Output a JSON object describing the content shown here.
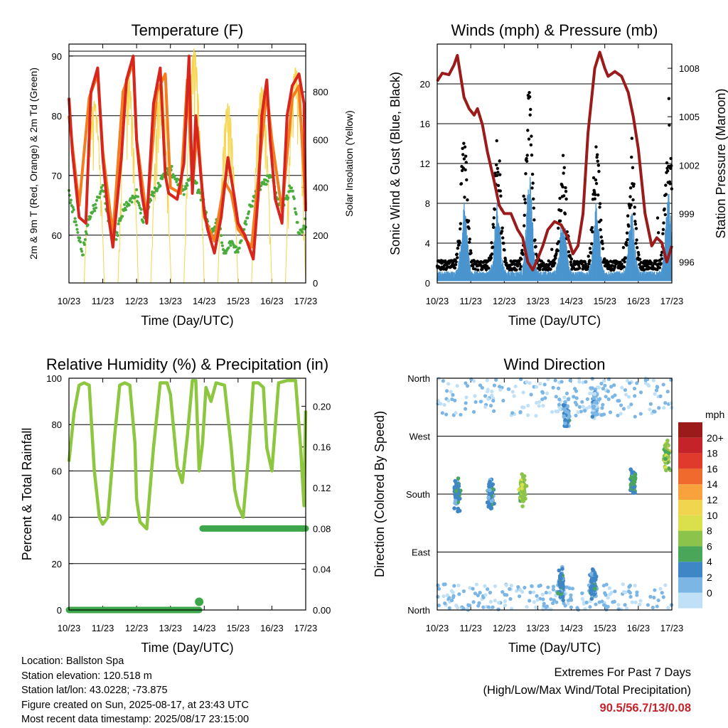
{
  "chart_data": [
    {
      "type": "line",
      "title": "Temperature (F)",
      "xlabel": "Time (Day/UTC)",
      "ylabel": "2m & 9m T (Red, Orange) & 2m Td (Green)",
      "y2label": "Solar Insolation (Yellow)",
      "x_ticks": [
        "10/23",
        "11/23",
        "12/23",
        "13/23",
        "14/23",
        "15/23",
        "16/23",
        "17/23"
      ],
      "xlim": [
        10,
        17
      ],
      "ylim": [
        52,
        92
      ],
      "y_ticks": [
        60,
        70,
        80,
        90
      ],
      "y2lim": [
        0,
        1000
      ],
      "y2_ticks": [
        0,
        200,
        400,
        600,
        800
      ],
      "grid": true,
      "colors": {
        "t2m": "#d7261e",
        "t9m": "#f47d20",
        "td2m": "#4aac3c",
        "solar": "#f7d44a"
      },
      "series": [
        {
          "name": "2m T",
          "x": [
            10.0,
            10.1,
            10.3,
            10.5,
            10.65,
            10.85,
            11.0,
            11.15,
            11.3,
            11.55,
            11.7,
            11.9,
            12.0,
            12.15,
            12.3,
            12.5,
            12.7,
            12.85,
            12.95,
            13.2,
            13.4,
            13.55,
            13.65,
            13.75,
            13.9,
            14.0,
            14.1,
            14.3,
            14.5,
            14.7,
            14.9,
            15.0,
            15.2,
            15.45,
            15.6,
            15.7,
            15.85,
            15.95,
            16.1,
            16.3,
            16.45,
            16.6,
            16.8,
            16.95,
            17.0
          ],
          "y": [
            83,
            74,
            63,
            62,
            84,
            88,
            73,
            64,
            58,
            73,
            86,
            90,
            76,
            67,
            62,
            82,
            88,
            70,
            67,
            66,
            72,
            90,
            67,
            80,
            70,
            64,
            61,
            57,
            63,
            73,
            66,
            62,
            60,
            56,
            67,
            80,
            86,
            76,
            66,
            62,
            80,
            85,
            87,
            82,
            64
          ]
        },
        {
          "name": "9m T",
          "x": [
            10.0,
            10.3,
            10.6,
            10.85,
            11.0,
            11.3,
            11.6,
            11.9,
            12.0,
            12.3,
            12.6,
            12.85,
            13.0,
            13.3,
            13.5,
            13.65,
            13.8,
            14.0,
            14.3,
            14.6,
            14.8,
            15.0,
            15.4,
            15.6,
            15.85,
            16.0,
            16.3,
            16.6,
            16.8,
            17.0
          ],
          "y": [
            80,
            65,
            83,
            87,
            74,
            60,
            84,
            89,
            76,
            63,
            84,
            87,
            68,
            67,
            86,
            68,
            78,
            63,
            59,
            69,
            67,
            61,
            58,
            70,
            84,
            76,
            64,
            83,
            85,
            65
          ]
        },
        {
          "name": "2m Td",
          "x": [
            10.0,
            10.2,
            10.4,
            10.6,
            10.8,
            11.0,
            11.2,
            11.4,
            11.6,
            11.8,
            12.0,
            12.2,
            12.4,
            12.6,
            12.8,
            13.0,
            13.2,
            13.4,
            13.6,
            13.8,
            14.0,
            14.2,
            14.4,
            14.6,
            14.8,
            15.0,
            15.2,
            15.4,
            15.6,
            15.8,
            16.0,
            16.2,
            16.4,
            16.6,
            16.8,
            17.0
          ],
          "y": [
            67,
            62,
            57,
            63,
            65,
            68,
            62,
            60,
            64,
            66,
            67,
            62,
            66,
            68,
            70,
            71,
            69,
            67,
            70,
            68,
            65,
            60,
            63,
            57,
            59,
            57,
            62,
            65,
            68,
            69,
            70,
            65,
            66,
            68,
            60,
            62
          ]
        },
        {
          "name": "Solar Insolation",
          "peaks": [
            10.75,
            11.75,
            12.72,
            13.7,
            14.7,
            15.7,
            16.7
          ],
          "peak_values": [
            760,
            870,
            850,
            980,
            750,
            820,
            900
          ]
        }
      ]
    },
    {
      "type": "scatter",
      "title": "Winds (mph) & Pressure (mb)",
      "xlabel": "Time (Day/UTC)",
      "ylabel": "Sonic Wind & Gust (Blue, Black)",
      "y2label": "Station Pressure (Maroon)",
      "x_ticks": [
        "10/23",
        "11/23",
        "12/23",
        "13/23",
        "14/23",
        "15/23",
        "16/23",
        "17/23"
      ],
      "xlim": [
        10,
        17
      ],
      "ylim": [
        0,
        24
      ],
      "y_ticks": [
        0,
        4,
        8,
        12,
        16,
        20
      ],
      "y2lim": [
        994.7,
        1009.5
      ],
      "y2_ticks": [
        996,
        999,
        1002,
        1005,
        1008
      ],
      "grid": true,
      "colors": {
        "wind": "#4b95cf",
        "gust": "#000000",
        "pressure": "#9b1b1b"
      },
      "pressure": {
        "x": [
          10.0,
          10.15,
          10.35,
          10.5,
          10.6,
          10.7,
          10.8,
          10.95,
          11.1,
          11.2,
          11.35,
          11.5,
          11.7,
          11.85,
          12.0,
          12.2,
          12.4,
          12.55,
          12.7,
          12.85,
          13.0,
          13.15,
          13.3,
          13.5,
          13.7,
          13.9,
          14.05,
          14.2,
          14.35,
          14.5,
          14.7,
          14.85,
          15.0,
          15.1,
          15.3,
          15.5,
          15.7,
          15.85,
          16.0,
          16.2,
          16.4,
          16.55,
          16.7,
          16.85,
          17.0
        ],
        "y": [
          1007.2,
          1007.7,
          1007.6,
          1008.2,
          1008.8,
          1007.5,
          1006.2,
          1005.5,
          1005.1,
          1005.5,
          1004.5,
          1002.8,
          1001,
          999.5,
          999,
          999,
          998,
          997.5,
          996,
          995.5,
          996.2,
          997,
          998,
          998.5,
          998.3,
          997.5,
          996.5,
          997,
          999,
          1004,
          1008,
          1009,
          1008,
          1007.5,
          1007.8,
          1007.5,
          1006.5,
          1005,
          1003,
          999,
          997,
          997.5,
          997.2,
          996,
          997
        ]
      },
      "wind_bursts": [
        {
          "center": 10.8,
          "peak": 7
        },
        {
          "center": 11.8,
          "peak": 7
        },
        {
          "center": 12.75,
          "peak": 10
        },
        {
          "center": 13.75,
          "peak": 6.5
        },
        {
          "center": 14.75,
          "peak": 7
        },
        {
          "center": 15.8,
          "peak": 6
        },
        {
          "center": 16.9,
          "peak": 8
        }
      ],
      "gust_max": 22
    },
    {
      "type": "line",
      "title": "Relative Humidity (%) & Precipitation (in)",
      "xlabel": "Time (Day/UTC)",
      "ylabel": "Percent & Total Rainfall",
      "x_ticks": [
        "10/23",
        "11/23",
        "12/23",
        "13/23",
        "14/23",
        "15/23",
        "16/23",
        "17/23"
      ],
      "xlim": [
        10,
        17
      ],
      "ylim": [
        0,
        100
      ],
      "y_ticks": [
        0,
        20,
        40,
        60,
        80,
        100
      ],
      "y2lim": [
        0,
        0.2275
      ],
      "y2_ticks": [
        "0.00",
        "0.04",
        "0.08",
        "0.12",
        "0.16",
        "0.20"
      ],
      "grid": true,
      "colors": {
        "rh": "#8dc63f",
        "precip": "#3ea64a"
      },
      "series": [
        {
          "name": "Relative Humidity",
          "x": [
            10.0,
            10.15,
            10.3,
            10.45,
            10.6,
            10.75,
            10.9,
            11.0,
            11.15,
            11.35,
            11.5,
            11.65,
            11.8,
            11.95,
            12.0,
            12.1,
            12.3,
            12.5,
            12.7,
            12.9,
            13.0,
            13.2,
            13.35,
            13.5,
            13.65,
            13.75,
            13.85,
            13.95,
            14.05,
            14.2,
            14.35,
            14.6,
            14.8,
            14.9,
            15.0,
            15.15,
            15.3,
            15.45,
            15.6,
            15.75,
            15.85,
            16.0,
            16.2,
            16.45,
            16.7,
            16.85,
            16.95,
            17.0
          ],
          "y": [
            64,
            85,
            97,
            98,
            97,
            60,
            40,
            37,
            40,
            75,
            97,
            98,
            97,
            72,
            48,
            38,
            35,
            70,
            98,
            98,
            93,
            62,
            55,
            75,
            99,
            99,
            60,
            72,
            96,
            90,
            98,
            97,
            70,
            52,
            45,
            40,
            65,
            98,
            98,
            96,
            70,
            60,
            98,
            99,
            99,
            70,
            45,
            86
          ]
        },
        {
          "name": "Total Precipitation",
          "x": [
            10.0,
            13.85,
            13.85,
            13.95,
            17.0
          ],
          "y": [
            0.0,
            0.0,
            0.008,
            0.08,
            0.08
          ]
        }
      ]
    },
    {
      "type": "scatter",
      "title": "Wind Direction",
      "xlabel": "Time (Day/UTC)",
      "ylabel": "Direction (Colored By Speed)",
      "x_ticks": [
        "10/23",
        "11/23",
        "12/23",
        "13/23",
        "14/23",
        "15/23",
        "16/23",
        "17/23"
      ],
      "xlim": [
        10,
        17
      ],
      "ylim": [
        0,
        360
      ],
      "y_ticks": [
        "North",
        "East",
        "South",
        "West",
        "North"
      ],
      "grid": true,
      "legend": {
        "title": "mph",
        "position": "right",
        "labels": [
          "20+",
          "18",
          "16",
          "14",
          "12",
          "10",
          "8",
          "6",
          "4",
          "2",
          "0"
        ],
        "colors": [
          "#9b1b1b",
          "#c4232a",
          "#e03a2c",
          "#f06a2e",
          "#f7a23c",
          "#f2d54e",
          "#d9e04c",
          "#8cc34a",
          "#4aa658",
          "#3f86c6",
          "#7cb6e5",
          "#bfe0f7"
        ]
      },
      "clusters": [
        {
          "center": 10.6,
          "dir": 180,
          "speed": 4
        },
        {
          "center": 11.6,
          "dir": 180,
          "speed": 4
        },
        {
          "center": 12.55,
          "dir": 185,
          "speed": 8
        },
        {
          "center": 13.85,
          "dir": 300,
          "speed": 3
        },
        {
          "center": 13.7,
          "dir": 40,
          "speed": 4
        },
        {
          "center": 14.7,
          "dir": 320,
          "speed": 2
        },
        {
          "center": 14.65,
          "dir": 40,
          "speed": 4
        },
        {
          "center": 15.85,
          "dir": 200,
          "speed": 5
        },
        {
          "center": 16.85,
          "dir": 240,
          "speed": 8
        }
      ]
    }
  ],
  "info": {
    "location": "Location: Ballston Spa",
    "elevation": "Station elevation: 120.518 m",
    "latlon": "Station lat/lon: 43.0228; -73.875",
    "created": "Figure created on Sun, 2025-08-17, at 23:43 UTC",
    "timestamp": "Most recent data timestamp: 2025/08/17 23:15:00"
  },
  "extremes": {
    "line1": "Extremes For Past 7 Days",
    "line2": "(High/Low/Max Wind/Total Precipitation)",
    "values": "90.5/56.7/13/0.08"
  }
}
